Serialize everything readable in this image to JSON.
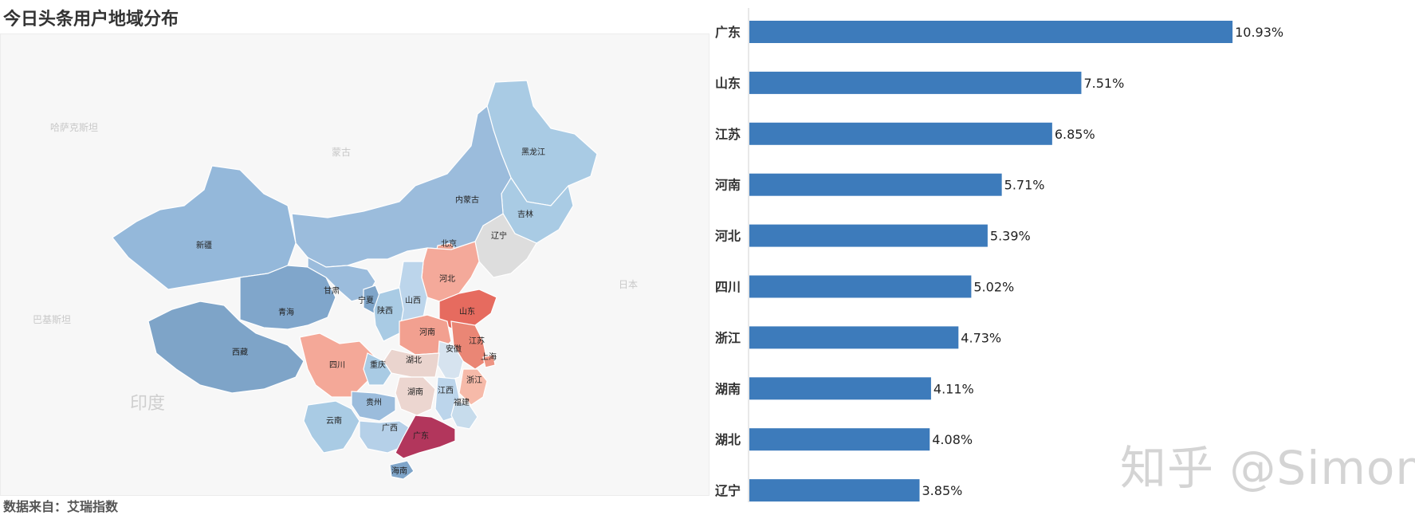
{
  "title": "今日头条用户地域分布",
  "source_note": "数据来自：艾瑞指数",
  "watermark": "知乎 @Simon",
  "map": {
    "regions": [
      {
        "name": "黑龙江",
        "color": "#a9cbe4"
      },
      {
        "name": "吉林",
        "color": "#a9cbe4"
      },
      {
        "name": "辽宁",
        "color": "#dddddd"
      },
      {
        "name": "内蒙古",
        "color": "#9bbcdc"
      },
      {
        "name": "北京",
        "color": "#f0a593"
      },
      {
        "name": "河北",
        "color": "#f4a99a"
      },
      {
        "name": "山西",
        "color": "#bcd5eb"
      },
      {
        "name": "山东",
        "color": "#e66b5f"
      },
      {
        "name": "新疆",
        "color": "#94b8da"
      },
      {
        "name": "西藏",
        "color": "#7ea4c8"
      },
      {
        "name": "青海",
        "color": "#80a6cb"
      },
      {
        "name": "甘肃",
        "color": "#9bbcdc"
      },
      {
        "name": "宁夏",
        "color": "#7fa5c9"
      },
      {
        "name": "陕西",
        "color": "#a9cbe4"
      },
      {
        "name": "河南",
        "color": "#f2a090"
      },
      {
        "name": "江苏",
        "color": "#ea8675"
      },
      {
        "name": "上海",
        "color": "#ee9584"
      },
      {
        "name": "安徽",
        "color": "#d6e3ef"
      },
      {
        "name": "湖北",
        "color": "#ead4ce"
      },
      {
        "name": "四川",
        "color": "#f4a898"
      },
      {
        "name": "重庆",
        "color": "#a9cbe4"
      },
      {
        "name": "浙江",
        "color": "#f6baa9"
      },
      {
        "name": "湖南",
        "color": "#ecd6d0"
      },
      {
        "name": "江西",
        "color": "#bcd5eb"
      },
      {
        "name": "福建",
        "color": "#c7dcec"
      },
      {
        "name": "贵州",
        "color": "#9bbcdc"
      },
      {
        "name": "云南",
        "color": "#a9cbe4"
      },
      {
        "name": "广西",
        "color": "#b5d0e8"
      },
      {
        "name": "广东",
        "color": "#b2365c"
      },
      {
        "name": "海南",
        "color": "#7fa5c9"
      }
    ],
    "background_labels": [
      "哈萨克斯坦",
      "蒙古",
      "日本",
      "巴基斯坦",
      "印度"
    ]
  },
  "chart_data": {
    "type": "bar",
    "orientation": "horizontal",
    "categories": [
      "广东",
      "山东",
      "江苏",
      "河南",
      "河北",
      "四川",
      "浙江",
      "湖南",
      "湖北",
      "辽宁"
    ],
    "values": [
      10.93,
      7.51,
      6.85,
      5.71,
      5.39,
      5.02,
      4.73,
      4.11,
      4.08,
      3.85
    ],
    "value_labels": [
      "10.93%",
      "7.51%",
      "6.85%",
      "5.71%",
      "5.39%",
      "5.02%",
      "4.73%",
      "4.11%",
      "4.08%",
      "3.85%"
    ],
    "bar_color": "#3d7bbb",
    "xlim": [
      0,
      11.0
    ],
    "title": "",
    "xlabel": "",
    "ylabel": ""
  }
}
